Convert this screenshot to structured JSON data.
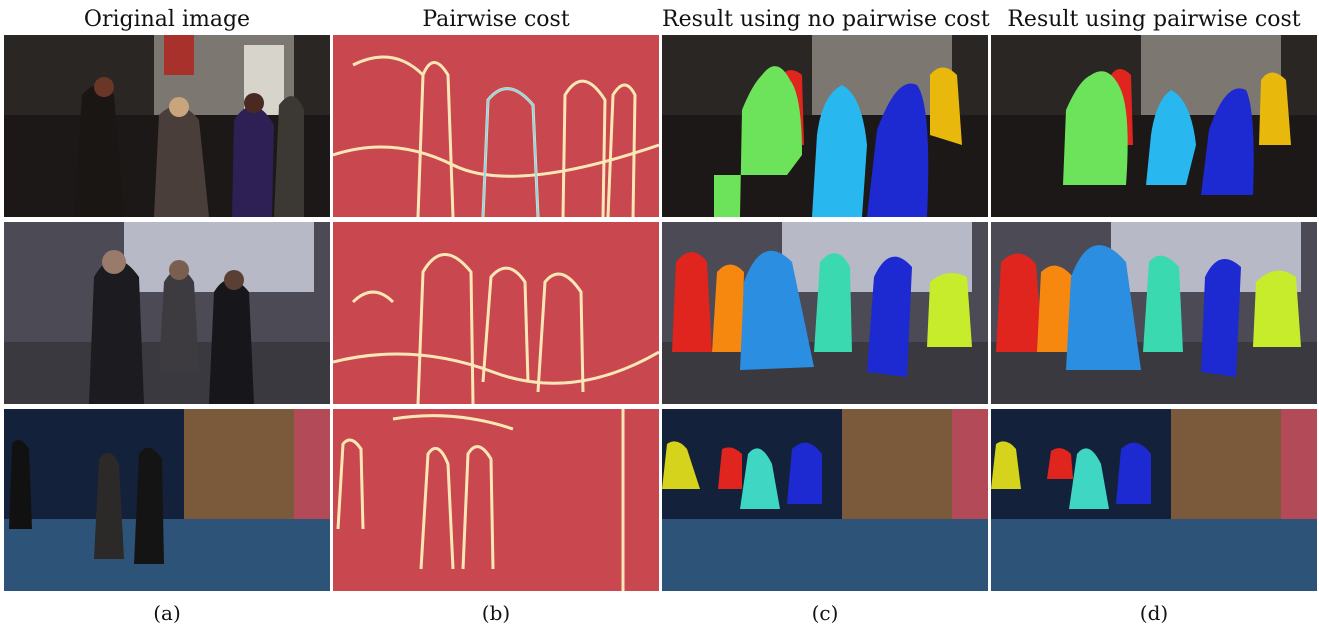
{
  "columns": [
    {
      "title": "Original image",
      "sub": "(a)"
    },
    {
      "title": "Pairwise cost",
      "sub": "(b)"
    },
    {
      "title": "Result using no pairwise cost",
      "sub": "(c)"
    },
    {
      "title": "Result using pairwise cost",
      "sub": "(d)"
    }
  ],
  "colors": {
    "scene1": "#2a2624",
    "scene2": "#4b4a55",
    "scene3": "#14213a",
    "cost_bg": "#c9474f",
    "cost_edge": "#fbe7b6",
    "red": "#e0251e",
    "orange": "#f6870f",
    "yellow": "#e8b90c",
    "green": "#6de25b",
    "cyan": "#28b8ef",
    "blue": "#1e2ad1",
    "mid_blue": "#2c8ee0",
    "teal": "#3ad9b0",
    "lime": "#c7ec2c",
    "yellow_green": "#d6d31c",
    "teal_light": "#3fd7c4"
  }
}
